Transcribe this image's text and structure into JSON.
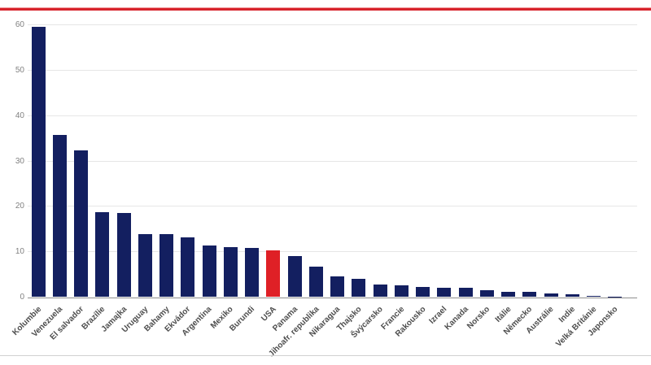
{
  "page": {
    "accent_line_color": "#d7232b",
    "background_color": "#ffffff",
    "bottom_divider_color": "#d0d0d0"
  },
  "chart_data": {
    "type": "bar",
    "title": "",
    "xlabel": "",
    "ylabel": "",
    "categories": [
      "Kolumbie",
      "Venezuela",
      "El salvador",
      "Brazílie",
      "Jamajka",
      "Uruguay",
      "Bahamy",
      "Ekvádor",
      "Argentina",
      "Mexiko",
      "Burundi",
      "USA",
      "Panama",
      "Jihoafr. republika",
      "Nikaragua",
      "Thajsko",
      "Švýcarsko",
      "Francie",
      "Rakousko",
      "Izrael",
      "Kanada",
      "Norsko",
      "Itálie",
      "Německo",
      "Austrálie",
      "Indie",
      "Velká Británie",
      "Japonsko"
    ],
    "values": [
      59.5,
      35.7,
      32.2,
      18.6,
      18.5,
      13.8,
      13.8,
      13.0,
      11.2,
      10.9,
      10.8,
      10.3,
      9.0,
      6.6,
      4.4,
      4.0,
      2.7,
      2.5,
      2.2,
      2.0,
      2.0,
      1.4,
      1.0,
      1.0,
      0.8,
      0.5,
      0.15,
      0.05
    ],
    "highlighted_category": "USA",
    "highlight_index": 11,
    "ylim": [
      0,
      60
    ],
    "yticks": [
      0,
      10,
      20,
      30,
      40,
      50,
      60
    ],
    "grid": true,
    "legend_position": "none",
    "x_label_rotation": -45,
    "bar_color": "#131f60",
    "highlight_color": "#df2026",
    "gridline_color": "#e6e6e6",
    "axis_line_color": "#8f8f8f",
    "ytick_label_color": "#818181",
    "category_label_color": "#4d4d4d"
  }
}
